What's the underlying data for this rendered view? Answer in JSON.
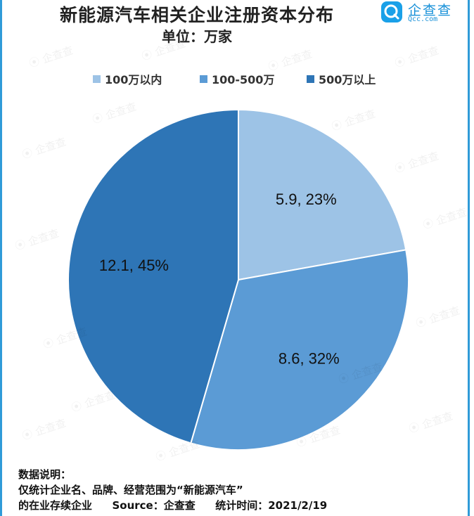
{
  "header": {
    "title": "新能源汽车相关企业注册资本分布",
    "subtitle": "单位：万家"
  },
  "logo": {
    "name": "企查查",
    "url": "Qcc.com"
  },
  "chart_data": {
    "type": "pie",
    "title": "新能源汽车相关企业注册资本分布",
    "unit": "万家",
    "legend_position": "top",
    "categories": [
      "100万以内",
      "100-500万",
      "500万以上"
    ],
    "values": [
      5.9,
      8.6,
      12.1
    ],
    "percents": [
      23,
      32,
      45
    ],
    "labels": [
      "5.9, 23%",
      "8.6, 32%",
      "12.1, 45%"
    ],
    "colors": [
      "#9dc3e6",
      "#5b9bd5",
      "#2e75b6"
    ]
  },
  "notes": {
    "heading": "数据说明：",
    "line1": "仅统计企业名、品牌、经营范围为“新能源汽车”",
    "line2_a": "的在业存续企业",
    "line2_b": "Source：企查查",
    "line2_c": "统计时间：2021/2/19"
  },
  "watermark_text": "企查查"
}
